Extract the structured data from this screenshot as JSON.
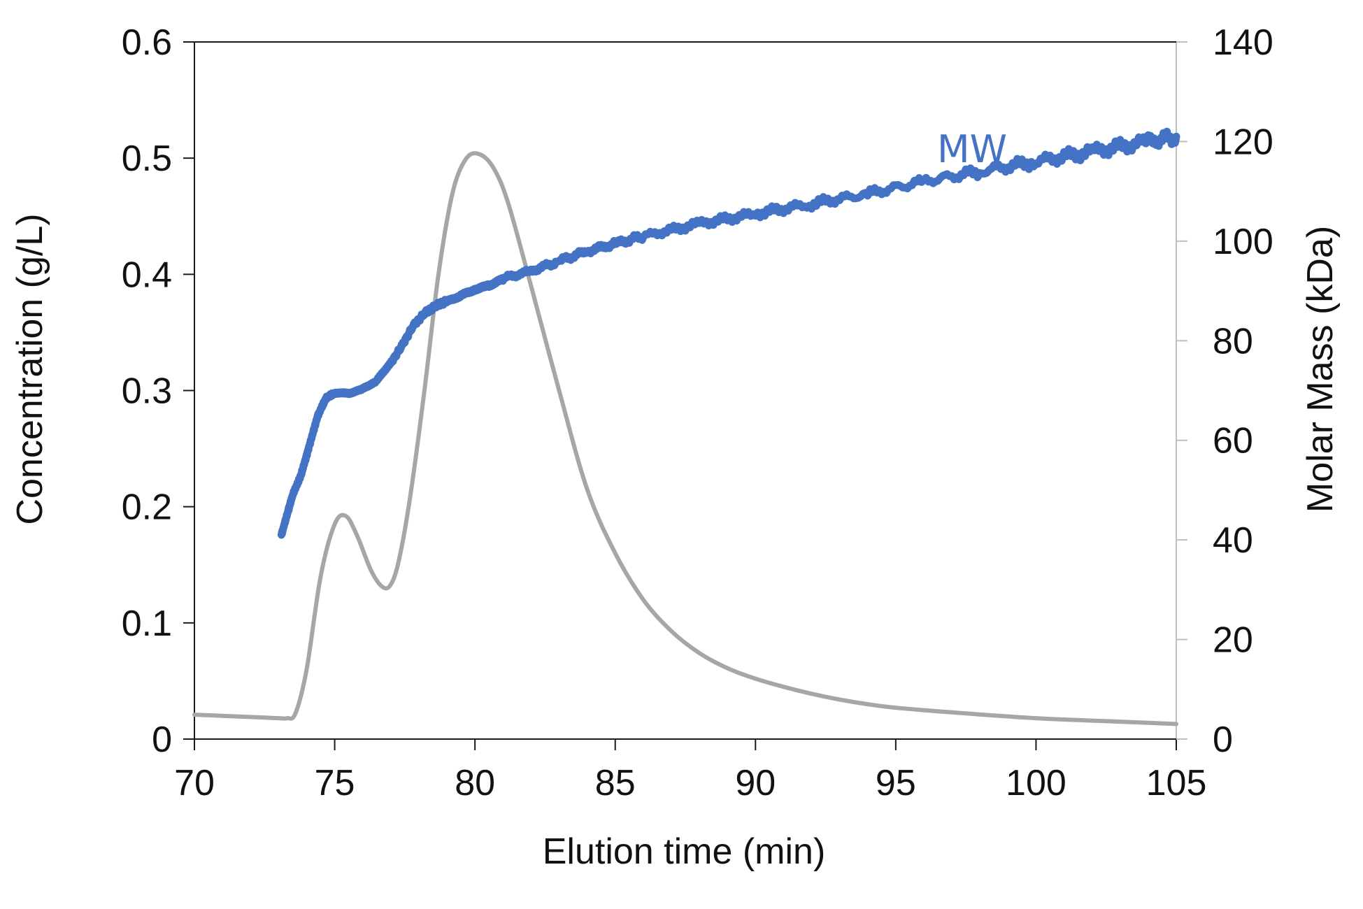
{
  "chart_data": {
    "type": "line",
    "x_axis": {
      "label": "Elution time (min)",
      "range": [
        70,
        105
      ],
      "ticks": [
        70,
        75,
        80,
        85,
        90,
        95,
        100,
        105
      ]
    },
    "y_left_axis": {
      "label": "Concentration (g/L)",
      "range": [
        0,
        0.6
      ],
      "ticks": [
        0,
        0.1,
        0.2,
        0.3,
        0.4,
        0.5,
        0.6
      ],
      "tick_labels": [
        "0",
        "0.1",
        "0.2",
        "0.3",
        "0.4",
        "0.5",
        "0.6"
      ]
    },
    "y_right_axis": {
      "label": "Molar Mass (kDa)",
      "range": [
        0,
        140
      ],
      "ticks": [
        0,
        20,
        40,
        60,
        80,
        100,
        120,
        140
      ]
    },
    "series": [
      {
        "name": "Concentration",
        "axis": "left",
        "color": "#a6a6a6",
        "x": [
          70,
          71,
          72,
          73,
          73.3,
          73.6,
          74,
          74.5,
          75,
          75.4,
          75.8,
          76.3,
          76.7,
          77,
          77.3,
          77.7,
          78.2,
          78.7,
          79.2,
          79.7,
          80.2,
          80.7,
          81.2,
          82,
          83,
          84,
          85,
          86,
          87,
          88,
          89,
          90,
          91,
          92,
          93,
          94,
          95,
          97,
          100,
          103,
          105
        ],
        "values": [
          0.021,
          0.02,
          0.019,
          0.018,
          0.018,
          0.022,
          0.06,
          0.14,
          0.185,
          0.192,
          0.175,
          0.145,
          0.131,
          0.133,
          0.155,
          0.21,
          0.3,
          0.4,
          0.47,
          0.5,
          0.503,
          0.49,
          0.46,
          0.39,
          0.3,
          0.215,
          0.16,
          0.12,
          0.093,
          0.074,
          0.061,
          0.052,
          0.045,
          0.039,
          0.034,
          0.03,
          0.027,
          0.023,
          0.018,
          0.015,
          0.013
        ]
      },
      {
        "name": "MW",
        "axis": "right",
        "color": "#4472c4",
        "x": [
          73.1,
          73.3,
          73.5,
          73.8,
          74.1,
          74.4,
          74.7,
          75,
          75.5,
          76,
          76.5,
          77,
          77.4,
          77.8,
          78.2,
          78.6,
          79,
          79.5,
          80,
          80.5,
          81,
          82,
          83,
          84,
          85,
          86,
          88,
          90,
          92,
          94,
          96,
          98,
          100,
          102,
          104,
          105
        ],
        "values": [
          41,
          45,
          49,
          53,
          59,
          65,
          68.5,
          69.5,
          69.5,
          70.5,
          72,
          75.5,
          79,
          83,
          85.5,
          87,
          88,
          89,
          90,
          91,
          92.5,
          94,
          96,
          98,
          99.5,
          101,
          103.5,
          105.5,
          107.5,
          109.5,
          112,
          114,
          116,
          118,
          120,
          121
        ],
        "label": "MW"
      }
    ]
  }
}
